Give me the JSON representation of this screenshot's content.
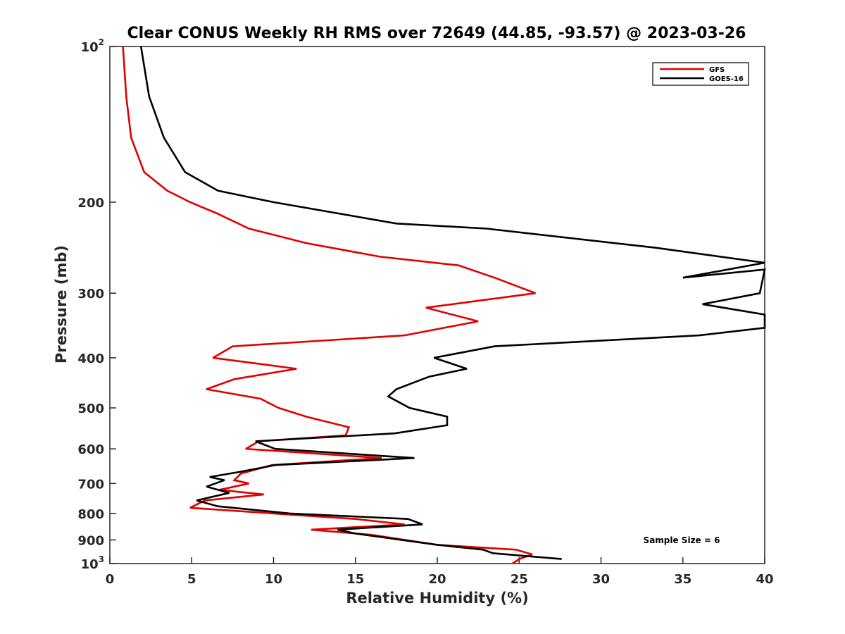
{
  "chart_data": {
    "type": "line",
    "title": "Clear CONUS Weekly RH RMS over 72649 (44.85, -93.57) @ 2023-03-26",
    "xlabel": "Relative Humidity (%)",
    "ylabel": "Pressure (mb)",
    "xlim": [
      0,
      40
    ],
    "ylim": [
      100,
      1000
    ],
    "y_scale": "log",
    "y_reversed": true,
    "grid": false,
    "legend_position": "top-right",
    "x_ticks": [
      "0",
      "5",
      "10",
      "15",
      "20",
      "25",
      "30",
      "35",
      "40"
    ],
    "y_ticks": [
      {
        "value": 100,
        "base": "10",
        "exp": "2"
      },
      {
        "value": 200,
        "base": "200",
        "exp": ""
      },
      {
        "value": 300,
        "base": "300",
        "exp": ""
      },
      {
        "value": 400,
        "base": "400",
        "exp": ""
      },
      {
        "value": 500,
        "base": "500",
        "exp": ""
      },
      {
        "value": 600,
        "base": "600",
        "exp": ""
      },
      {
        "value": 700,
        "base": "700",
        "exp": ""
      },
      {
        "value": 800,
        "base": "800",
        "exp": ""
      },
      {
        "value": 900,
        "base": "900",
        "exp": ""
      },
      {
        "value": 1000,
        "base": "10",
        "exp": "3"
      }
    ],
    "annotation": "Sample Size = 6",
    "series": [
      {
        "name": "GFS",
        "color": "#e00000",
        "points": [
          [
            0.8,
            100
          ],
          [
            1.0,
            125
          ],
          [
            1.3,
            150
          ],
          [
            2.1,
            175
          ],
          [
            3.5,
            190
          ],
          [
            4.9,
            200
          ],
          [
            6.5,
            210
          ],
          [
            8.5,
            225
          ],
          [
            12.0,
            240
          ],
          [
            16.5,
            255
          ],
          [
            21.3,
            265
          ],
          [
            23.5,
            280
          ],
          [
            26.0,
            300
          ],
          [
            19.3,
            320
          ],
          [
            22.5,
            340
          ],
          [
            18.0,
            362
          ],
          [
            7.5,
            380
          ],
          [
            6.3,
            400
          ],
          [
            11.4,
            420
          ],
          [
            7.6,
            440
          ],
          [
            5.9,
            460
          ],
          [
            9.2,
            480
          ],
          [
            10.3,
            500
          ],
          [
            12.0,
            520
          ],
          [
            14.6,
            545
          ],
          [
            14.4,
            565
          ],
          [
            9.1,
            580
          ],
          [
            8.3,
            600
          ],
          [
            16.6,
            625
          ],
          [
            9.9,
            645
          ],
          [
            8.0,
            670
          ],
          [
            7.6,
            690
          ],
          [
            8.5,
            700
          ],
          [
            6.7,
            720
          ],
          [
            9.4,
            735
          ],
          [
            5.8,
            755
          ],
          [
            4.9,
            780
          ],
          [
            10.0,
            800
          ],
          [
            15.0,
            820
          ],
          [
            18.0,
            840
          ],
          [
            12.3,
            860
          ],
          [
            16.0,
            880
          ],
          [
            18.0,
            900
          ],
          [
            20.0,
            920
          ],
          [
            24.8,
            940
          ],
          [
            25.8,
            960
          ],
          [
            25.0,
            980
          ],
          [
            24.6,
            1000
          ]
        ]
      },
      {
        "name": "GOES-16",
        "color": "#000000",
        "points": [
          [
            1.9,
            100
          ],
          [
            2.4,
            125
          ],
          [
            3.3,
            150
          ],
          [
            4.6,
            175
          ],
          [
            6.6,
            190
          ],
          [
            10.0,
            200
          ],
          [
            17.5,
            220
          ],
          [
            23.0,
            225
          ],
          [
            33.3,
            245
          ],
          [
            40.0,
            262
          ],
          [
            35.0,
            280
          ],
          [
            40.0,
            270
          ],
          [
            39.7,
            300
          ],
          [
            36.2,
            315
          ],
          [
            40.0,
            330
          ],
          [
            40.0,
            350
          ],
          [
            36.0,
            362
          ],
          [
            23.5,
            380
          ],
          [
            19.8,
            400
          ],
          [
            21.8,
            420
          ],
          [
            19.5,
            435
          ],
          [
            17.5,
            460
          ],
          [
            17.0,
            475
          ],
          [
            18.3,
            500
          ],
          [
            20.6,
            520
          ],
          [
            20.6,
            540
          ],
          [
            17.4,
            560
          ],
          [
            8.9,
            580
          ],
          [
            10.1,
            600
          ],
          [
            18.6,
            625
          ],
          [
            10.1,
            645
          ],
          [
            7.9,
            665
          ],
          [
            6.1,
            680
          ],
          [
            7.0,
            690
          ],
          [
            5.9,
            710
          ],
          [
            7.3,
            730
          ],
          [
            5.3,
            755
          ],
          [
            6.6,
            775
          ],
          [
            11.0,
            800
          ],
          [
            18.2,
            820
          ],
          [
            19.1,
            840
          ],
          [
            13.9,
            860
          ],
          [
            15.0,
            875
          ],
          [
            20.0,
            920
          ],
          [
            22.8,
            940
          ],
          [
            23.4,
            955
          ],
          [
            27.6,
            980
          ]
        ]
      }
    ]
  }
}
